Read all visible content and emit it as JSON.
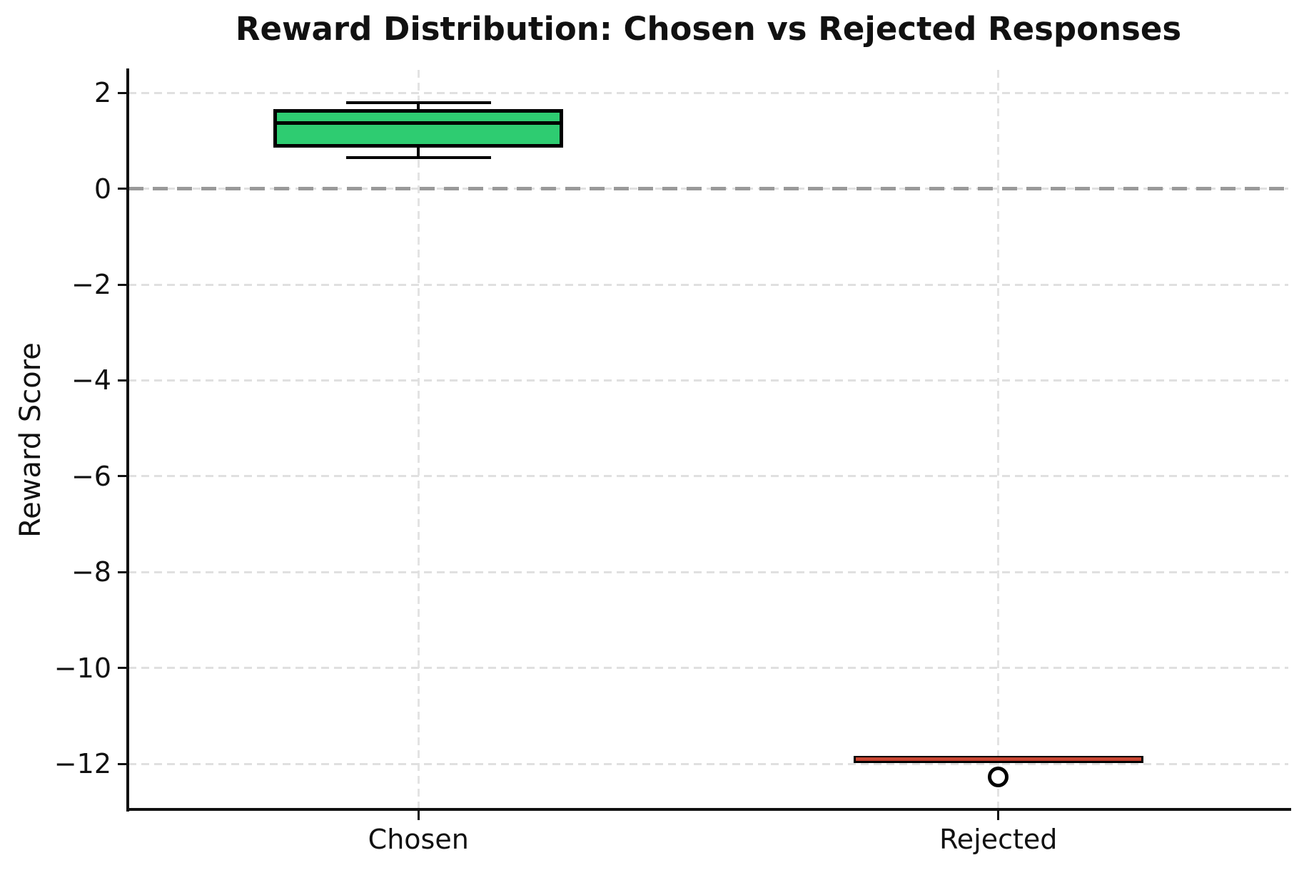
{
  "chart_data": {
    "type": "box",
    "title": "Reward Distribution: Chosen vs Rejected Responses",
    "xlabel": "",
    "ylabel": "Reward Score",
    "categories": [
      "Chosen",
      "Rejected"
    ],
    "positions": [
      1,
      2
    ],
    "xlim": [
      0.5,
      2.5
    ],
    "ylim": [
      -12.95,
      2.48
    ],
    "y_ticks": [
      2,
      0,
      -2,
      -4,
      -6,
      -8,
      -10,
      -12
    ],
    "y_tick_labels": [
      "2",
      "0",
      "−2",
      "−4",
      "−6",
      "−8",
      "−10",
      "−12"
    ],
    "grid": true,
    "grid_style": "dashed",
    "legend": "none",
    "box_width": 0.5,
    "cap_width": 0.25,
    "zero_line": {
      "y": 0,
      "color": "#999999",
      "style": "dashed"
    },
    "series": [
      {
        "name": "Chosen",
        "position": 1,
        "whisker_low": 0.65,
        "q1": 0.86,
        "median": 1.37,
        "q3": 1.66,
        "whisker_high": 1.79,
        "outliers": [],
        "fill_color": "#2ecc71",
        "edge_color": "#000000",
        "median_color": "#000000"
      },
      {
        "name": "Rejected",
        "position": 2,
        "whisker_low": -11.98,
        "q1": -11.98,
        "median": -11.9,
        "q3": -11.84,
        "whisker_high": -11.84,
        "outliers": [
          -12.27
        ],
        "fill_color": "#c0392b",
        "edge_color": "#000000",
        "median_color": "#c84632"
      }
    ]
  }
}
